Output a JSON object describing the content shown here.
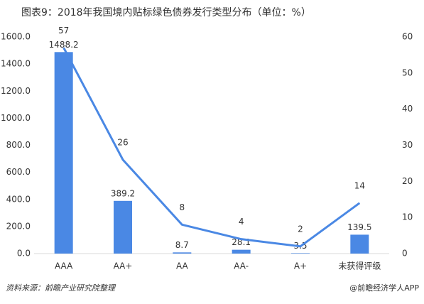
{
  "chart_data": {
    "type": "bar",
    "title": "图表9：2018年我国境内贴标绿色债券发行类型分布（单位：%）",
    "categories": [
      "AAA",
      "AA+",
      "AA",
      "AA-",
      "A+",
      "未获得评级"
    ],
    "series": [
      {
        "type": "bar",
        "color": "#4a88e4",
        "values": [
          1488.2,
          389.2,
          8.7,
          28.1,
          3.5,
          139.5
        ]
      },
      {
        "type": "line",
        "color": "#4a88e4",
        "axis": "y2",
        "values": [
          57,
          26,
          8,
          4,
          2,
          14
        ]
      }
    ],
    "ylim": [
      0,
      1600
    ],
    "yticks": [
      {
        "value": 0,
        "label": "0.0"
      },
      {
        "value": 200,
        "label": "200.0"
      },
      {
        "value": 400,
        "label": "400.0"
      },
      {
        "value": 600,
        "label": "600.0"
      },
      {
        "value": 800,
        "label": "800.0"
      },
      {
        "value": 1000,
        "label": "1000.0"
      },
      {
        "value": 1200,
        "label": "1200.0"
      },
      {
        "value": 1400,
        "label": "1400.0"
      },
      {
        "value": 1600,
        "label": "1600.0"
      }
    ],
    "y2lim": [
      0,
      60
    ],
    "y2ticks": [
      0,
      10,
      20,
      30,
      40,
      50,
      60
    ],
    "source": "资料来源：前瞻产业研究院整理",
    "brand": "@前瞻经济学人APP"
  }
}
